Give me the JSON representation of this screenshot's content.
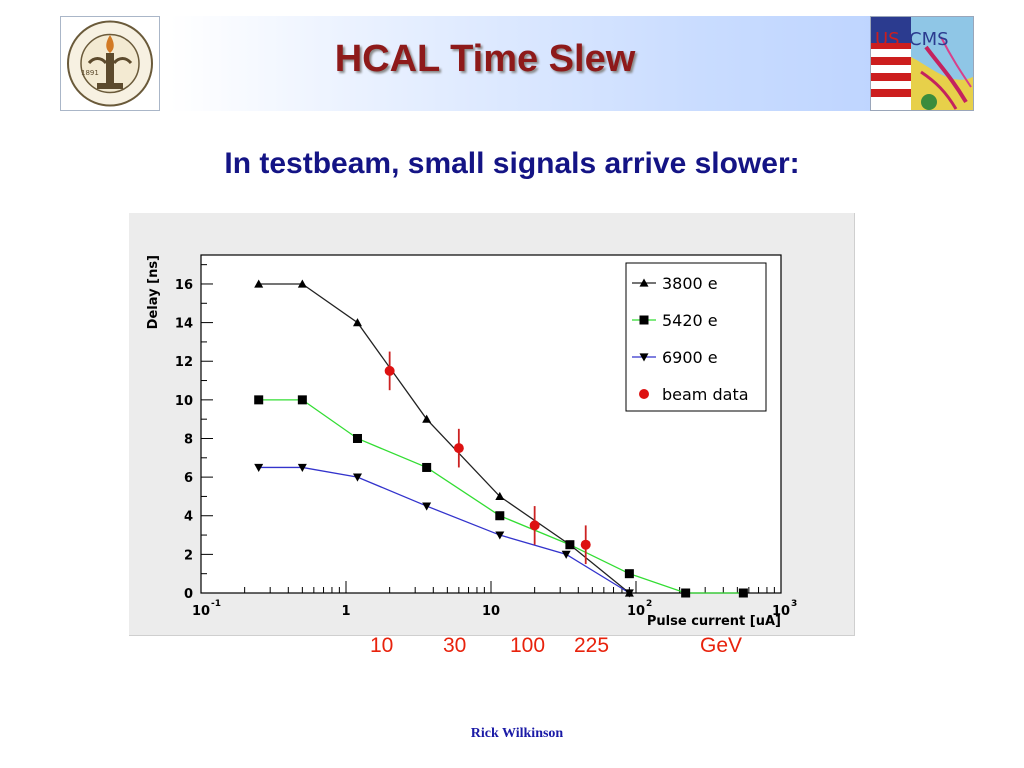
{
  "slide": {
    "title": "HCAL Time Slew",
    "subtitle": "In testbeam, small signals arrive slower:",
    "footer": "Rick Wilkinson",
    "left_logo": "caltech-seal-logo",
    "right_logo": "uscms-logo"
  },
  "energy_labels": {
    "e10": "10",
    "e30": "30",
    "e100": "100",
    "e225": "225",
    "unit": "GeV"
  },
  "colors": {
    "title": "#8e1a1a",
    "subtitle": "#141485",
    "energy": "#e8220c",
    "series_3800": "#222222",
    "series_5420": "#33dd33",
    "series_6900": "#3333cc",
    "beam": "#dd1111",
    "beam_error": "#cc2222"
  },
  "chart_data": {
    "type": "line",
    "xlabel": "Pulse current [uA]",
    "ylabel": "Delay [ns]",
    "xscale": "log",
    "xlim": [
      0.1,
      1000
    ],
    "ylim": [
      0,
      17.5
    ],
    "x_ticks": [
      {
        "value": 0.1,
        "label": "10",
        "exp": "-1"
      },
      {
        "value": 1,
        "label": "1",
        "exp": ""
      },
      {
        "value": 10,
        "label": "10",
        "exp": ""
      },
      {
        "value": 100,
        "label": "10",
        "exp": "2"
      },
      {
        "value": 1000,
        "label": "10",
        "exp": "3"
      }
    ],
    "y_ticks": [
      0,
      2,
      4,
      6,
      8,
      10,
      12,
      14,
      16
    ],
    "legend_position": "top-right",
    "series": [
      {
        "name": "3800 e",
        "marker": "triangle-up",
        "color": "#222222",
        "x": [
          0.25,
          0.5,
          1.2,
          3.6,
          11.5,
          35,
          90
        ],
        "y": [
          16,
          16,
          14,
          9,
          5,
          2.5,
          0
        ]
      },
      {
        "name": "5420 e",
        "marker": "square",
        "color": "#33dd33",
        "x": [
          0.25,
          0.5,
          1.2,
          3.6,
          11.5,
          35,
          90,
          220,
          550
        ],
        "y": [
          10,
          10,
          8,
          6.5,
          4,
          2.5,
          1,
          0,
          0
        ]
      },
      {
        "name": "6900 e",
        "marker": "triangle-down",
        "color": "#3333cc",
        "x": [
          0.25,
          0.5,
          1.2,
          3.6,
          11.5,
          33,
          90
        ],
        "y": [
          6.5,
          6.5,
          6,
          4.5,
          3,
          2,
          0
        ]
      },
      {
        "name": "beam data",
        "marker": "circle",
        "color": "#dd1111",
        "x": [
          2,
          6,
          20,
          45
        ],
        "y": [
          11.5,
          7.5,
          3.5,
          2.5
        ],
        "yerr": [
          1,
          1,
          1,
          1
        ]
      }
    ]
  }
}
